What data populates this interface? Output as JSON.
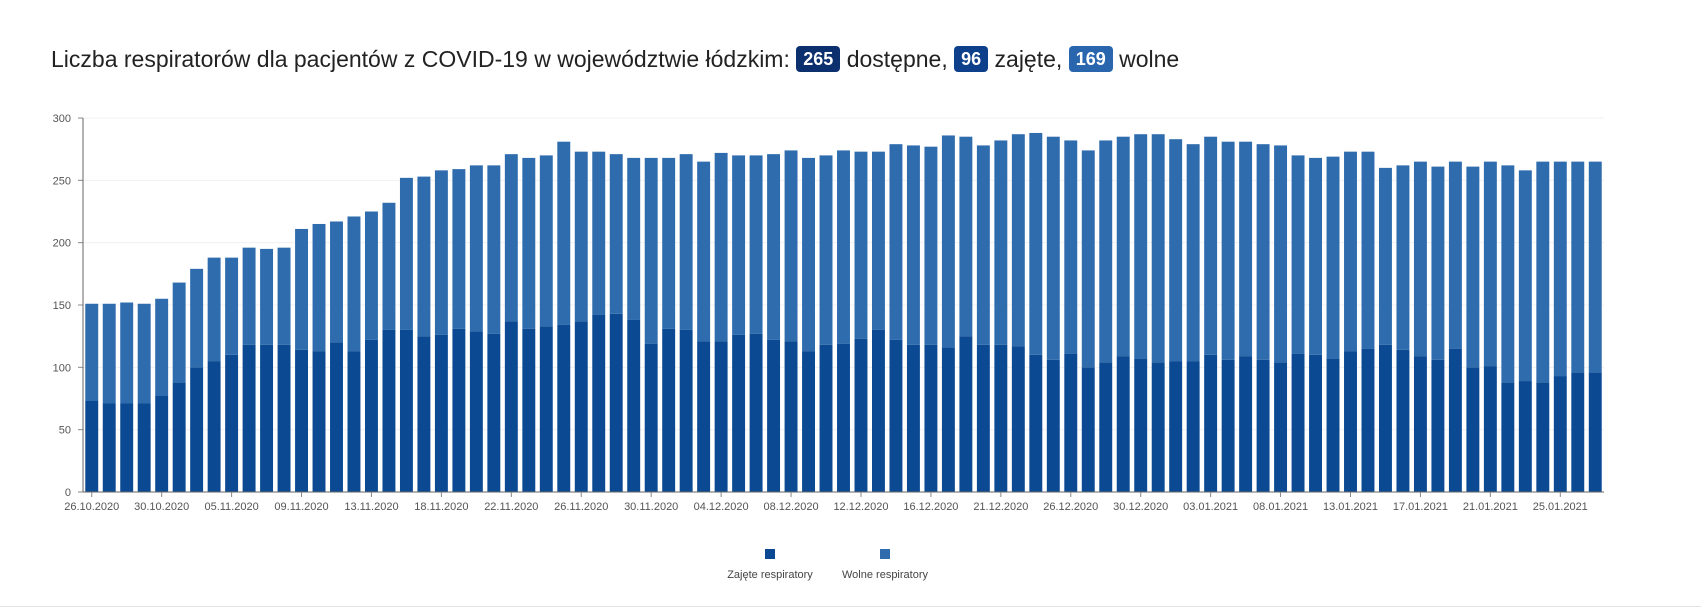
{
  "header": {
    "title_prefix": "Liczba respiratorów dla pacjentów z COVID-19 w województwie łódzkim:",
    "available_count": "265",
    "available_label": "dostępne,",
    "occupied_count": "96",
    "occupied_label": "zajęte,",
    "free_count": "169",
    "free_label": "wolne"
  },
  "chart_data": {
    "type": "bar",
    "stacked": true,
    "ylim": [
      0,
      300
    ],
    "y_ticks": [
      0,
      50,
      100,
      150,
      200,
      250,
      300
    ],
    "grid": true,
    "legend_position": "bottom-center",
    "x_tick_labels": [
      "26.10.2020",
      "30.10.2020",
      "05.11.2020",
      "09.11.2020",
      "13.11.2020",
      "18.11.2020",
      "22.11.2020",
      "26.11.2020",
      "30.11.2020",
      "04.12.2020",
      "08.12.2020",
      "12.12.2020",
      "16.12.2020",
      "21.12.2020",
      "26.12.2020",
      "30.12.2020",
      "03.01.2021",
      "08.01.2021",
      "13.01.2021",
      "17.01.2021",
      "21.01.2021",
      "25.01.2021"
    ],
    "x_tick_label_bar_index": [
      0,
      4,
      8,
      12,
      16,
      20,
      24,
      28,
      32,
      36,
      40,
      44,
      48,
      52,
      56,
      60,
      64,
      68,
      72,
      76,
      80,
      84
    ],
    "series": [
      {
        "name": "Zajęte respiratory",
        "color": "#0b4a93",
        "values": [
          73,
          71,
          71,
          71,
          77,
          88,
          100,
          105,
          110,
          118,
          118,
          118,
          114,
          113,
          120,
          113,
          122,
          130,
          130,
          125,
          126,
          131,
          129,
          127,
          137,
          131,
          133,
          134,
          137,
          142,
          143,
          138,
          119,
          131,
          130,
          121,
          121,
          126,
          127,
          122,
          121,
          113,
          118,
          119,
          123,
          130,
          122,
          118,
          118,
          116,
          125,
          118,
          118,
          117,
          110,
          106,
          111,
          100,
          104,
          109,
          107,
          104,
          105,
          105,
          110,
          106,
          109,
          106,
          104,
          111,
          110,
          107,
          113,
          115,
          118,
          114,
          109,
          106,
          115,
          100,
          101,
          88,
          89,
          88,
          93,
          96,
          96
        ]
      },
      {
        "name": "Wolne respiratory",
        "color": "#2f6cae",
        "values": [
          78,
          80,
          81,
          80,
          78,
          80,
          79,
          83,
          78,
          78,
          77,
          78,
          97,
          102,
          97,
          108,
          103,
          102,
          122,
          128,
          132,
          128,
          133,
          135,
          134,
          137,
          137,
          147,
          136,
          131,
          128,
          130,
          149,
          137,
          141,
          144,
          151,
          144,
          143,
          149,
          153,
          155,
          152,
          155,
          150,
          143,
          157,
          160,
          159,
          170,
          160,
          160,
          164,
          170,
          178,
          179,
          171,
          174,
          178,
          176,
          180,
          183,
          178,
          174,
          175,
          175,
          172,
          173,
          174,
          159,
          158,
          162,
          160,
          158,
          142,
          148,
          156,
          155,
          150,
          161,
          164,
          174,
          169,
          177,
          172,
          169,
          169
        ]
      }
    ]
  },
  "legend": {
    "occupied_label": "Zajęte respiratory",
    "free_label": "Wolne respiratory"
  }
}
